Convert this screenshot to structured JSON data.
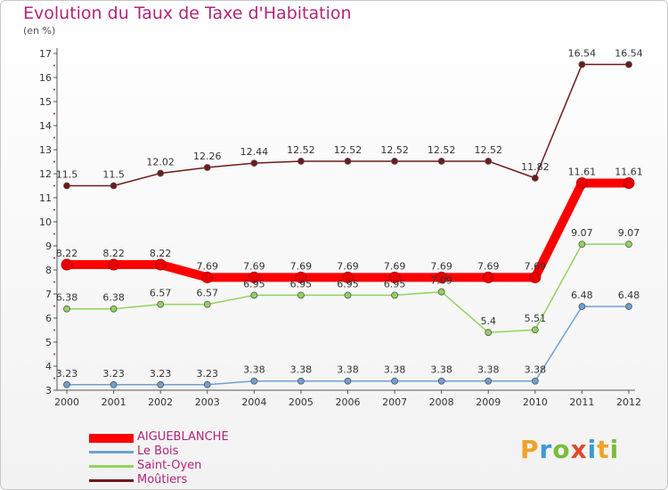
{
  "chart_data": {
    "type": "line",
    "title": "Evolution du Taux de Taxe d'Habitation",
    "subtitle": "(en %)",
    "ylim": [
      3,
      17
    ],
    "yticks": [
      "3",
      "4",
      "5",
      "6",
      "7",
      "8",
      "9",
      "10",
      "11",
      "12",
      "13",
      "14",
      "15",
      "16",
      "17"
    ],
    "categories": [
      "2000",
      "2001",
      "2002",
      "2003",
      "2004",
      "2005",
      "2006",
      "2007",
      "2008",
      "2009",
      "2010",
      "2011",
      "2012"
    ],
    "grid": false,
    "legend_position": "bottom-left",
    "series": [
      {
        "name": "Moûtiers",
        "color": "#6e1a1a",
        "values": [
          11.5,
          11.5,
          12.02,
          12.26,
          12.44,
          12.52,
          12.52,
          12.52,
          12.52,
          12.52,
          11.82,
          16.54,
          16.54
        ],
        "labels": [
          "11.5",
          "11.5",
          "12.02",
          "12.26",
          "12.44",
          "12.52",
          "12.52",
          "12.52",
          "12.52",
          "12.52",
          "11.82",
          "16.54",
          "16.54"
        ]
      },
      {
        "name": "Saint-Oyen",
        "color": "#93d25e",
        "values": [
          6.38,
          6.38,
          6.57,
          6.57,
          6.95,
          6.95,
          6.95,
          6.95,
          7.09,
          5.4,
          5.51,
          9.07,
          9.07
        ],
        "labels": [
          "6.38",
          "6.38",
          "6.57",
          "6.57",
          "6.95",
          "6.95",
          "6.95",
          "6.95",
          "7.09",
          "5.4",
          "5.51",
          "9.07",
          "9.07"
        ]
      },
      {
        "name": "Le Bois",
        "color": "#6fa0d0",
        "values": [
          3.23,
          3.23,
          3.23,
          3.23,
          3.38,
          3.38,
          3.38,
          3.38,
          3.38,
          3.38,
          3.38,
          6.48,
          6.48
        ],
        "labels": [
          "3.23",
          "3.23",
          "3.23",
          "3.23",
          "3.38",
          "3.38",
          "3.38",
          "3.38",
          "3.38",
          "3.38",
          "3.38",
          "6.48",
          "6.48"
        ]
      },
      {
        "name": "AIGUEBLANCHE",
        "color": "#ff0000",
        "values": [
          8.22,
          8.22,
          8.22,
          7.69,
          7.69,
          7.69,
          7.69,
          7.69,
          7.69,
          7.69,
          7.69,
          11.61,
          11.61
        ],
        "labels": [
          "8.22",
          "8.22",
          "8.22",
          "7.69",
          "7.69",
          "7.69",
          "7.69",
          "7.69",
          "7.69",
          "7.69",
          "7.69",
          "11.61",
          "11.61"
        ]
      }
    ],
    "legend": [
      {
        "name": "AIGUEBLANCHE",
        "color": "#ff0000"
      },
      {
        "name": "Le Bois",
        "color": "#6fa0d0"
      },
      {
        "name": "Saint-Oyen",
        "color": "#93d25e"
      },
      {
        "name": "Moûtiers",
        "color": "#6e1a1a"
      }
    ]
  },
  "logo": {
    "letters": [
      "P",
      "r",
      "o",
      "x",
      "i",
      "t",
      "i"
    ],
    "colors": [
      "#f0a32a",
      "#3d9ad6",
      "#7cbc3b",
      "#e04a2f",
      "#3d9ad6",
      "#f0a32a",
      "#7cbc3b"
    ]
  }
}
